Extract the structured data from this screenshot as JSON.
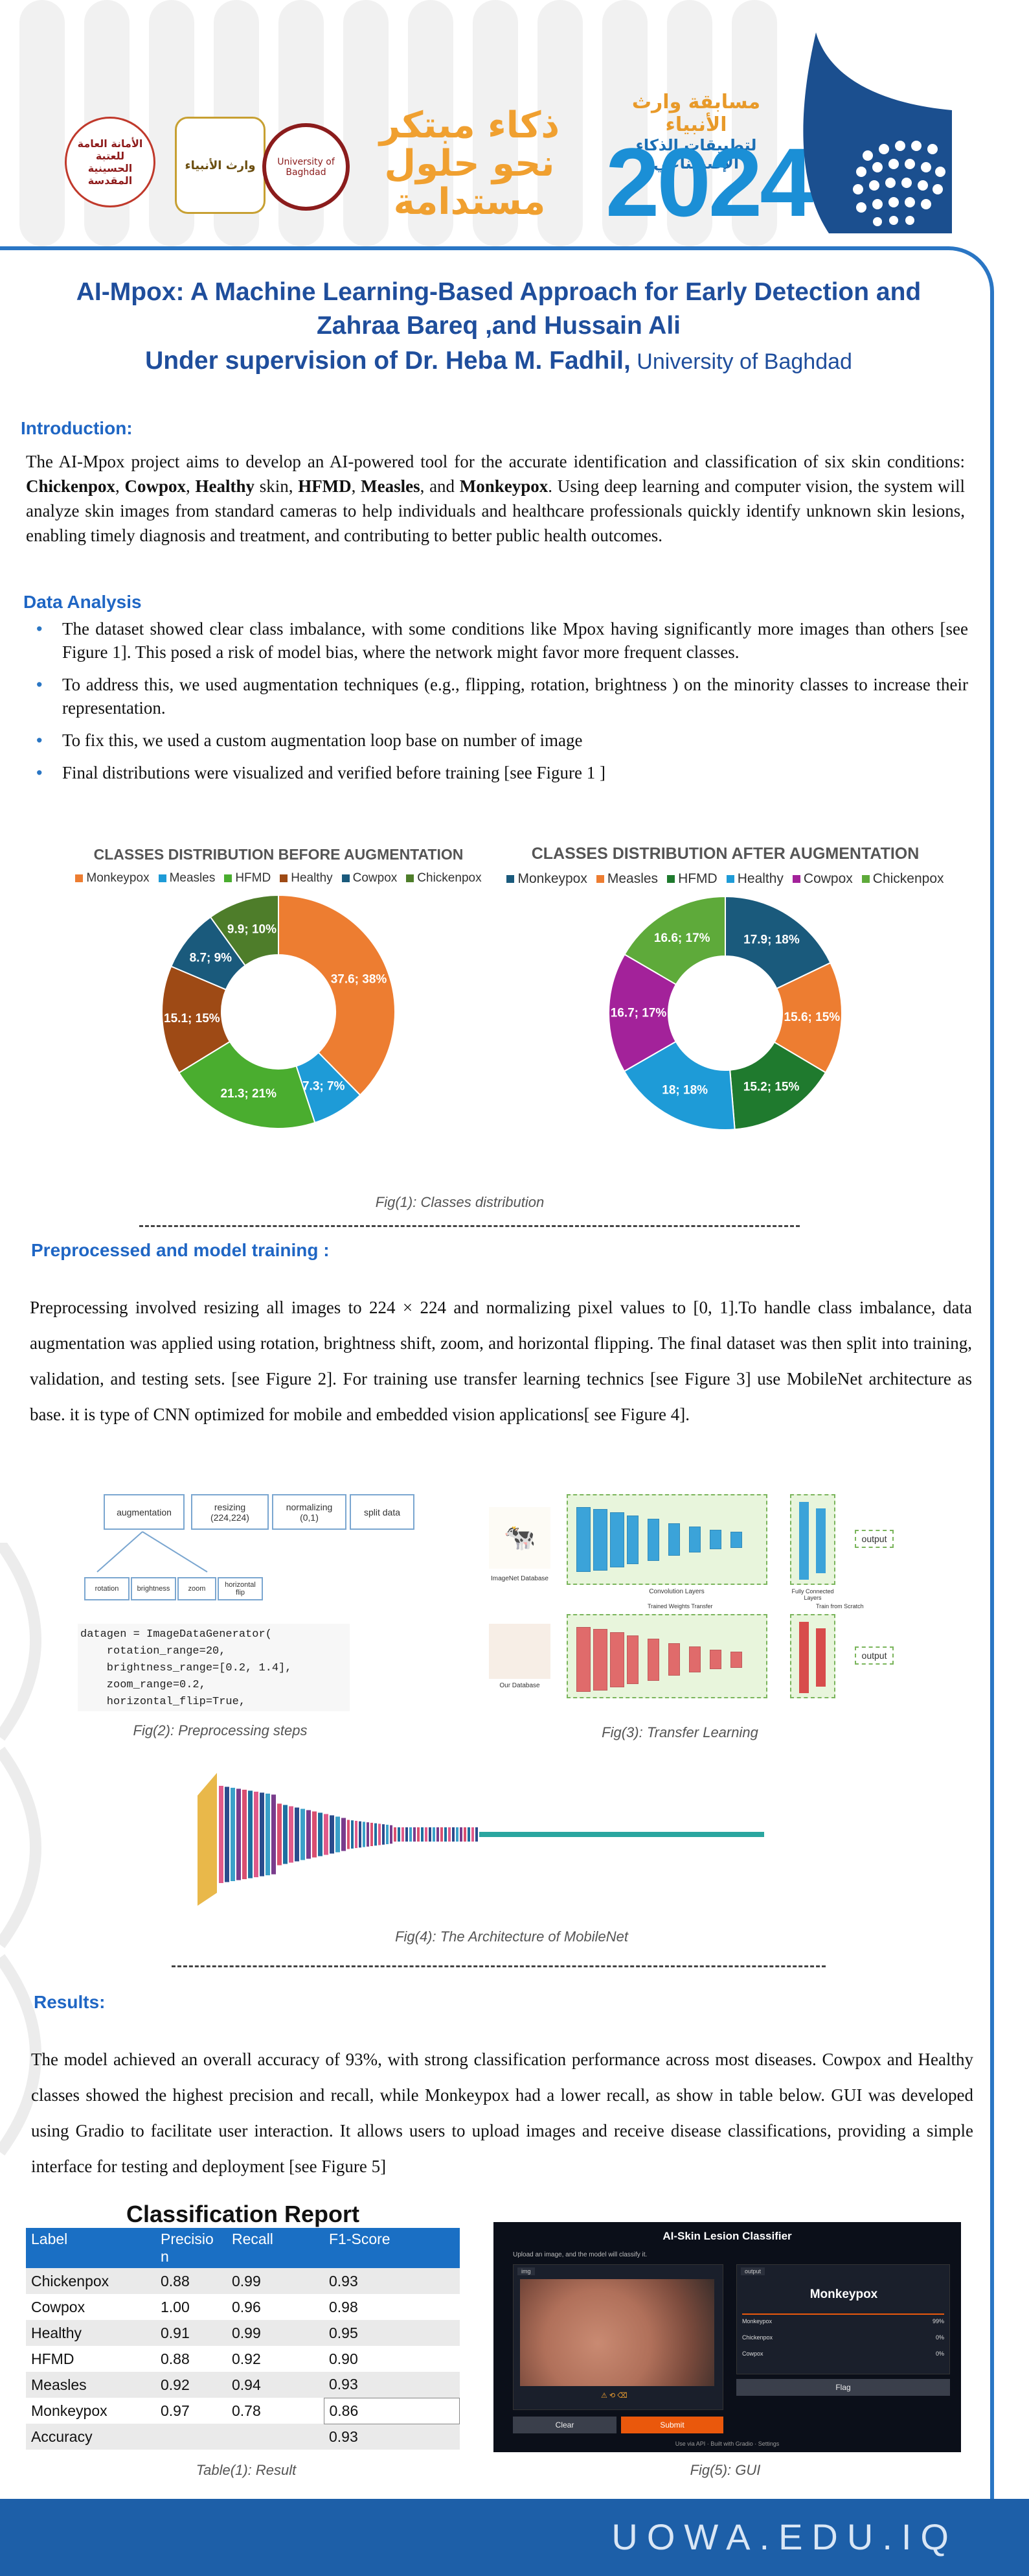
{
  "header": {
    "logo1_text": "الأمانة العامة للعتبة الحسينية المقدسة",
    "logo2_text": "وارث الأنبياء",
    "logo3_text": "University of Baghdad",
    "slogan_line1": "ذكاء مبتكر",
    "slogan_line2": "نحو حلول",
    "slogan_line3": "مستدامة",
    "competition_line1": "مسابقة وارث الأنبياء",
    "competition_line2": "لتطبيقات الذكاء الإصطناعي",
    "year": "2024"
  },
  "title": {
    "line1": "AI-Mpox: A Machine Learning-Based Approach for Early Detection and",
    "line2": "Zahraa Bareq ,and Hussain Ali",
    "line3_bold": "Under supervision of  Dr. Heba M. Fadhil,",
    "line3_normal": " University of  Baghdad"
  },
  "introduction": {
    "heading": "Introduction:",
    "t1": "The AI-Mpox project aims to develop an AI-powered tool for the accurate identification and classification of six skin conditions: ",
    "b1": "Chickenpox",
    "t2": ", ",
    "b2": "Cowpox",
    "t3": ", ",
    "b3": "Healthy",
    "t4": " skin, ",
    "b4": "HFMD",
    "t5": ", ",
    "b5": "Measles",
    "t6": ", and ",
    "b6": "Monkeypox",
    "t7": ". Using deep learning and computer vision, the system will analyze skin images from standard cameras to help individuals and healthcare professionals quickly identify unknown skin lesions, enabling timely diagnosis and treatment, and contributing to better public health outcomes."
  },
  "data_analysis": {
    "heading": "Data Analysis",
    "bullets": [
      "The dataset showed clear class imbalance, with some conditions like Mpox having significantly more images than others [see Figure 1]. This posed a risk of model bias, where the network might favor more frequent classes.",
      "To address this, we used augmentation techniques (e.g., flipping, rotation, brightness ) on the minority classes to increase their representation.",
      "To fix this, we used a custom augmentation loop base on number of image",
      "Final distributions were visualized and verified before training [see Figure 1 ]"
    ],
    "fig1_caption": "Fig(1): Classes distribution"
  },
  "colors": {
    "Monkeypox": "#ed7d31",
    "Measles": "#1e9bd7",
    "HFMD": "#4aad2f",
    "Healthy": "#9e4a15",
    "Cowpox": "#1a5a7c",
    "Chickenpox": "#4e7d2a",
    "Healthy_after": "#1e9bd7",
    "Cowpox_after": "#a3229a",
    "Chickenpox_after": "#5eaa3a",
    "Monkeypox_after": "#1a5a7c",
    "Measles_after": "#ed7d31",
    "HFMD_after": "#1f7a2e",
    "accent": "#1f66c4",
    "footer": "#1d5fa8"
  },
  "chart_data": [
    {
      "type": "pie",
      "title": "CLASSES DISTRIBUTION BEFORE AUGMENTATION",
      "legend_position": "top",
      "categories": [
        "Monkeypox",
        "Measles",
        "HFMD",
        "Healthy",
        "Cowpox",
        "Chickenpox"
      ],
      "values": [
        37.6,
        7.3,
        21.3,
        15.1,
        8.7,
        9.9
      ],
      "labels": [
        "37.6; 38%",
        "7.3; 7%",
        "21.3; 21%",
        "15.1; 15%",
        "8.7; 9%",
        "9.9; 10%"
      ],
      "colors": [
        "#ed7d31",
        "#1e9bd7",
        "#4aad2f",
        "#9e4a15",
        "#1a5a7c",
        "#4e7d2a"
      ]
    },
    {
      "type": "pie",
      "title": "CLASSES DISTRIBUTION AFTER AUGMENTATION",
      "legend_position": "top",
      "categories": [
        "Monkeypox",
        "Measles",
        "HFMD",
        "Healthy",
        "Cowpox",
        "Chickenpox"
      ],
      "values": [
        17.9,
        15.6,
        15.2,
        18,
        16.7,
        16.6
      ],
      "labels": [
        "17.9; 18%",
        "15.6; 15%",
        "15.2; 15%",
        "18; 18%",
        "16.7; 17%",
        "16.6; 17%"
      ],
      "colors": [
        "#1a5a7c",
        "#ed7d31",
        "#1f7a2e",
        "#1e9bd7",
        "#a3229a",
        "#5eaa3a"
      ]
    }
  ],
  "preprocessing": {
    "heading": "Preprocessed and model training :",
    "text": "Preprocessing involved resizing all images to 224 × 224 and normalizing pixel values to [0, 1].To handle class imbalance, data augmentation was applied using rotation, brightness shift, zoom, and horizontal flipping. The final dataset was then split into training, validation, and testing sets. [see Figure 2]. For training use transfer learning technics [see Figure 3] use MobileNet architecture as base. it is type of CNN optimized for mobile and embedded vision applications[ see Figure 4].",
    "steps": [
      "augmentation",
      "resizing\n(224,224)",
      "normalizing\n(0,1)",
      "split data"
    ],
    "aug_steps": [
      "rotation",
      "brightness",
      "zoom",
      "horizontal\nflip"
    ],
    "code": "datagen = ImageDataGenerator(\n    rotation_range=20,\n    brightness_range=[0.2, 1.4],\n    zoom_range=0.2,\n    horizontal_flip=True,",
    "fig2_caption": "Fig(2): Preprocessing steps",
    "tl_labels": {
      "imagenet": "ImageNet Database",
      "conv1": "Convolution Layers",
      "fc1": "Fully Connected\nLayers",
      "transfer": "Trained Weights Transfer",
      "scratch": "Train from Scratch",
      "our": "Our Database",
      "conv2": "Convolution Layers",
      "fc2": "Fully Connected\nLayers",
      "output": "output"
    },
    "fig3_caption": "Fig(3): Transfer Learning",
    "fig4_caption": "Fig(4): The Architecture of MobileNet"
  },
  "results": {
    "heading": "Results:",
    "text": "The model achieved an overall accuracy of 93%, with strong classification performance across most diseases. Cowpox and Healthy classes showed the highest precision and recall, while Monkeypox had a lower recall, as show in table below. GUI was developed using Gradio to facilitate user interaction. It allows users to upload images and receive disease classifications, providing a simple interface for testing and deployment [see Figure 5]",
    "table_title": "Classification Report",
    "columns": [
      "Label",
      "Precisio\nn",
      "Recall",
      "F1-Score"
    ],
    "rows": [
      [
        "Chickenpox",
        "0.88",
        "0.99",
        "0.93"
      ],
      [
        "Cowpox",
        "1.00",
        "0.96",
        "0.98"
      ],
      [
        "Healthy",
        "0.91",
        "0.99",
        "0.95"
      ],
      [
        "HFMD",
        "0.88",
        "0.92",
        "0.90"
      ],
      [
        "Measles",
        "0.92",
        "0.94",
        "0.93"
      ],
      [
        "Monkeypox",
        "0.97",
        "0.78",
        "0.86"
      ],
      [
        "Accuracy",
        "",
        "",
        "0.93"
      ]
    ],
    "table_caption": "Table(1): Result",
    "gui": {
      "title": "AI-Skin Lesion Classifier",
      "subtitle": "Upload an image, and the model will classify it.",
      "img_tab": "img",
      "output_tab": "output",
      "prediction": "Monkeypox",
      "scores": [
        {
          "label": "Monkeypox",
          "value": "99%"
        },
        {
          "label": "Chickenpox",
          "value": "0%"
        },
        {
          "label": "Cowpox",
          "value": "0%"
        }
      ],
      "clear": "Clear",
      "submit": "Submit",
      "flag": "Flag",
      "footer_a": "Use via API",
      "footer_b": "Built with Gradio",
      "footer_c": "Settings"
    },
    "fig5_caption": "Fig(5): GUI"
  },
  "footer": {
    "url": "UOWA.EDU.IQ"
  }
}
